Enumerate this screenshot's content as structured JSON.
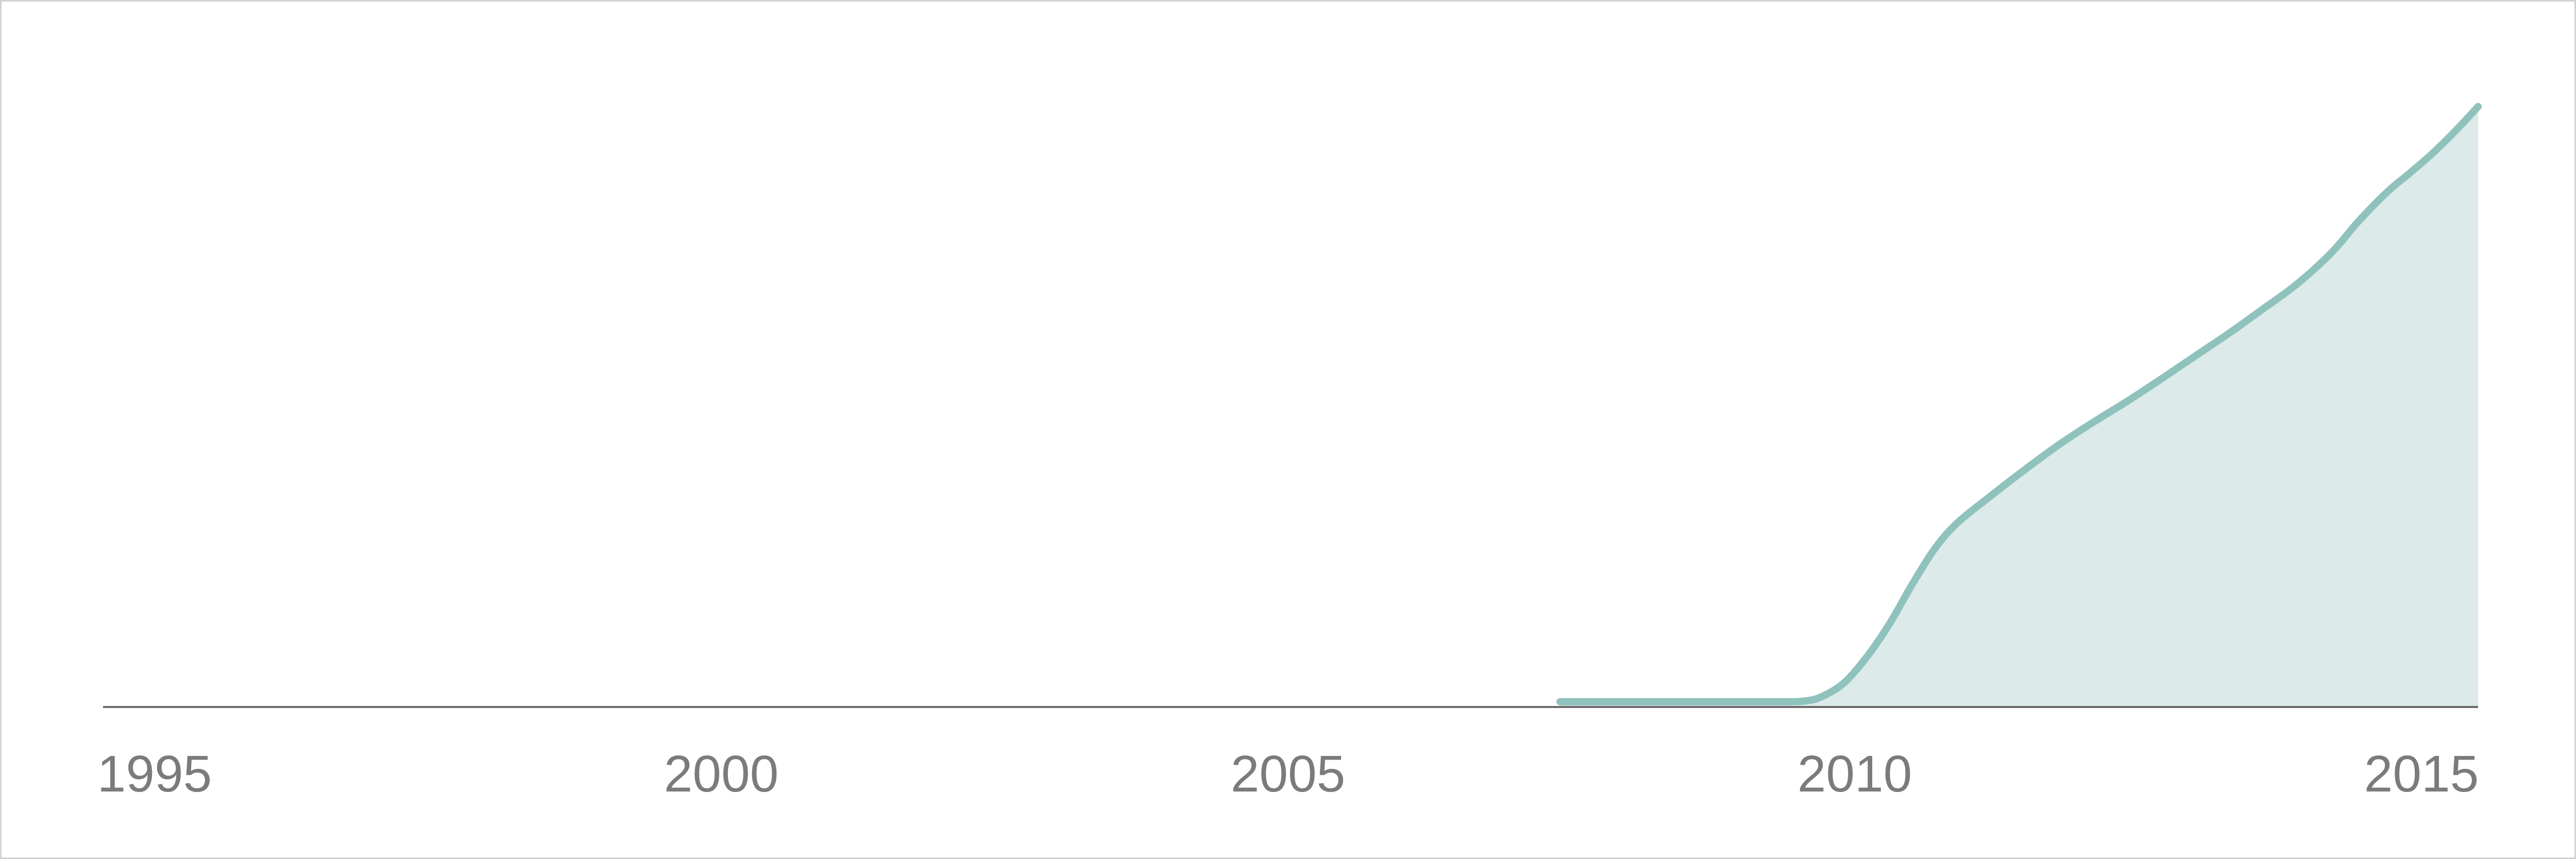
{
  "chart_data": {
    "type": "area",
    "title": "",
    "xlabel": "",
    "ylabel": "",
    "xlim": [
      1995,
      2016
    ],
    "ylim": [
      0,
      100
    ],
    "x_ticks": [
      1995,
      2000,
      2005,
      2010,
      2015
    ],
    "x_tick_labels": [
      "1995",
      "2000",
      "2005",
      "2010",
      "2015"
    ],
    "grid": false,
    "y_axis_shown": false,
    "series": [
      {
        "x": [
          2007.4,
          2008.0,
          2008.5,
          2009.0,
          2009.4,
          2009.55,
          2009.7,
          2009.9,
          2010.1,
          2010.3,
          2010.5,
          2010.7,
          2010.9,
          2011.2,
          2011.5,
          2011.8,
          2012.1,
          2012.4,
          2012.7,
          2013.0,
          2013.3,
          2013.6,
          2013.9,
          2014.2,
          2014.45,
          2014.7,
          2014.9,
          2015.1,
          2015.3,
          2015.5
        ],
        "y": [
          0.8,
          0.8,
          0.8,
          0.8,
          0.8,
          0.9,
          1.5,
          3.6,
          7.5,
          12.5,
          18.5,
          24.0,
          28.0,
          32.2,
          36.2,
          40.0,
          43.4,
          46.6,
          50.0,
          53.5,
          57.0,
          60.7,
          64.5,
          69.2,
          74.2,
          78.6,
          81.5,
          84.5,
          87.9,
          91.6
        ]
      }
    ],
    "colors": {
      "line": "#8fc2bc",
      "fill": "#dceae9",
      "axis": "#6b6b6b",
      "tick_text": "#7b7b7b",
      "border": "#d2d2d2"
    }
  }
}
